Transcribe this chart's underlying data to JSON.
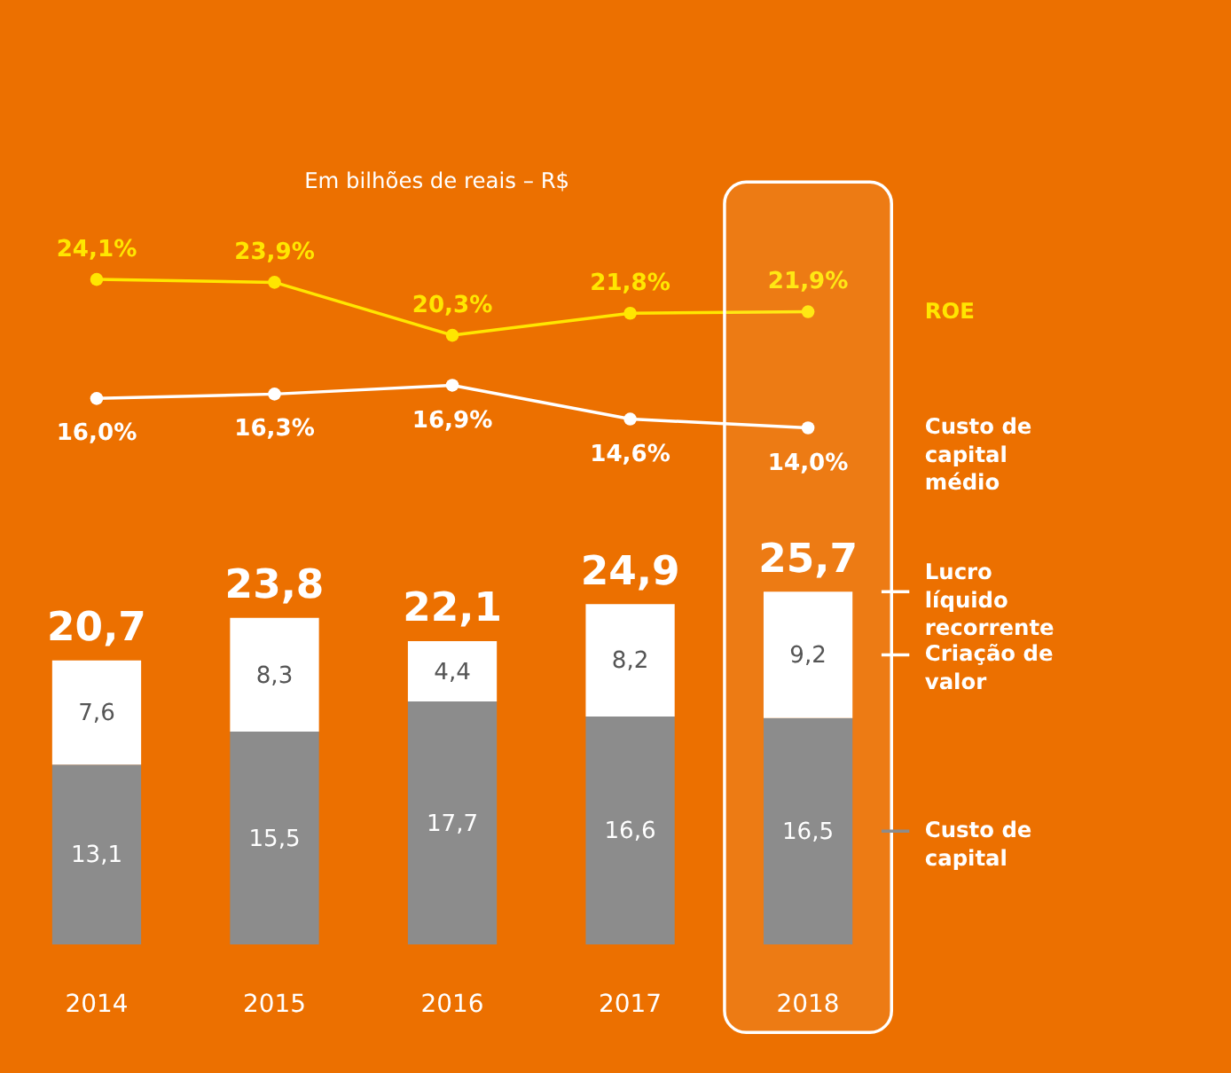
{
  "chart_data": [
    {
      "type": "line",
      "subtitle": "Em bilhões de reais – R$",
      "categories": [
        "2014",
        "2015",
        "2016",
        "2017",
        "2018"
      ],
      "tick_labels": false,
      "legend": "right",
      "marker": "circle",
      "series": [
        {
          "name": "ROE",
          "color": "#ffe600",
          "values": [
            24.1,
            23.9,
            20.3,
            21.8,
            21.9
          ],
          "value_labels": [
            "24,1%",
            "23,9%",
            "20,3%",
            "21,8%",
            "21,9%"
          ]
        },
        {
          "name": "Custo de capital médio",
          "color": "#ffffff",
          "values": [
            16.0,
            16.3,
            16.9,
            14.6,
            14.0
          ],
          "value_labels": [
            "16,0%",
            "16,3%",
            "16,9%",
            "14,6%",
            "14,0%"
          ]
        }
      ]
    },
    {
      "type": "bar",
      "categories": [
        "2014",
        "2015",
        "2016",
        "2017",
        "2018"
      ],
      "stacked": true,
      "tick_labels": "x",
      "legend": "right",
      "series": [
        {
          "name": "Custo de capital",
          "color": "#8c8c8c",
          "values": [
            13.1,
            15.5,
            17.7,
            16.6,
            16.5
          ],
          "value_labels": [
            "13,1",
            "15,5",
            "17,7",
            "16,6",
            "16,5"
          ]
        },
        {
          "name": "Criação de valor",
          "color": "#ffffff",
          "values": [
            7.6,
            8.3,
            4.4,
            8.2,
            9.2
          ],
          "value_labels": [
            "7,6",
            "8,3",
            "4,4",
            "8,2",
            "9,2"
          ]
        }
      ],
      "totals": [
        "20,7",
        "23,8",
        "22,1",
        "24,9",
        "25,7"
      ],
      "annotations": [
        "Lucro líquido recorrente"
      ],
      "bands": [
        {
          "axis": "x",
          "from": "2018",
          "to": "2018",
          "color": "#ffffff"
        }
      ]
    }
  ]
}
